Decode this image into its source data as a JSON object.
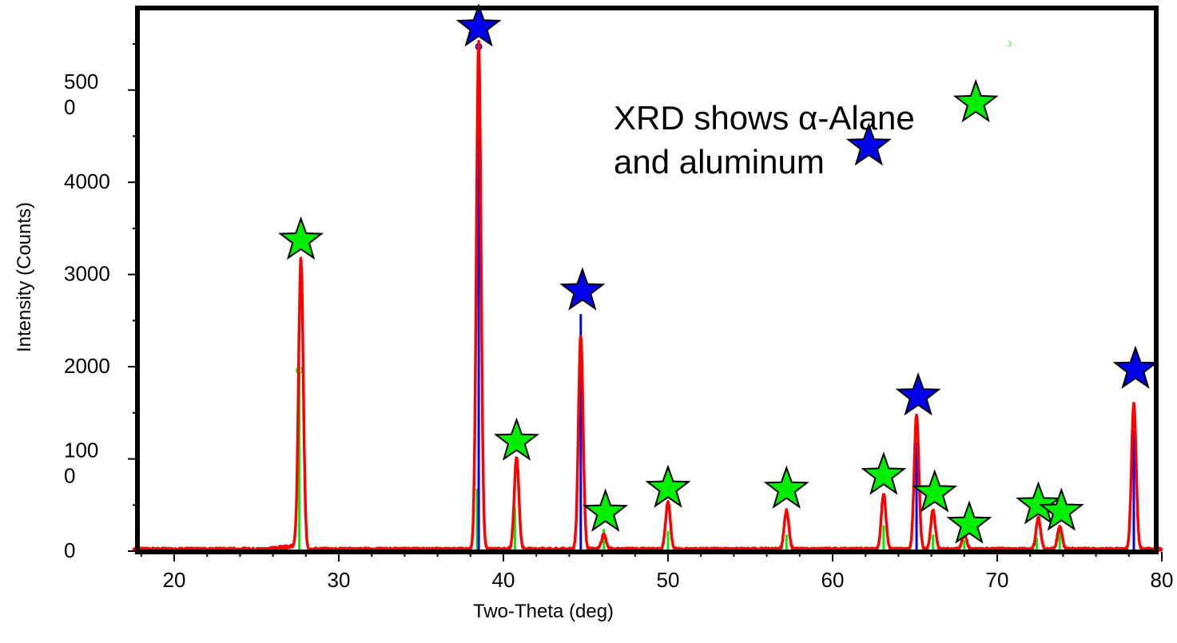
{
  "chart_data": {
    "type": "line",
    "xlabel": "Two-Theta (deg)",
    "ylabel": "Intensity (Counts)",
    "xlim": [
      17.5,
      80
    ],
    "ylim": [
      0,
      5600
    ],
    "x_ticks": [
      20,
      30,
      40,
      50,
      60,
      70,
      80
    ],
    "x_tick_labels": [
      "20",
      "30",
      "40",
      "50",
      "60",
      "70",
      "80"
    ],
    "y_ticks": [
      {
        "value": 0,
        "lines": [
          "0"
        ]
      },
      {
        "value": 1000,
        "lines": [
          "100",
          "0"
        ]
      },
      {
        "value": 2000,
        "lines": [
          "2000"
        ]
      },
      {
        "value": 3000,
        "lines": [
          "3000"
        ]
      },
      {
        "value": 4000,
        "lines": [
          "4000"
        ]
      },
      {
        "value": 5000,
        "lines": [
          "500",
          "0"
        ]
      }
    ],
    "annotation_lines": [
      "XRD shows α-Alane",
      "and aluminum"
    ],
    "stray_marks": [
      "3"
    ],
    "colors": {
      "pattern": "#ff0000",
      "alane": "#00ee00",
      "aluminum": "#0000ee",
      "star_outline": "#000000",
      "frame": "#000000"
    },
    "series": [
      {
        "type": "line",
        "color": "#ff0000",
        "peaks": [
          {
            "x": 27.7,
            "y": 3150
          },
          {
            "x": 38.5,
            "y": 5500
          },
          {
            "x": 40.8,
            "y": 1000
          },
          {
            "x": 44.7,
            "y": 2320
          },
          {
            "x": 46.1,
            "y": 160
          },
          {
            "x": 50.0,
            "y": 520
          },
          {
            "x": 57.2,
            "y": 420
          },
          {
            "x": 63.1,
            "y": 600
          },
          {
            "x": 65.1,
            "y": 1460
          },
          {
            "x": 66.1,
            "y": 420
          },
          {
            "x": 68.0,
            "y": 160
          },
          {
            "x": 72.5,
            "y": 340
          },
          {
            "x": 73.8,
            "y": 250
          },
          {
            "x": 78.3,
            "y": 1580
          }
        ]
      },
      {
        "type": "stick",
        "color": "#00ee00",
        "sticks": [
          {
            "x": 27.6,
            "y": 1960,
            "marker": true
          },
          {
            "x": 38.4,
            "y": 680
          },
          {
            "x": 40.7,
            "y": 480
          },
          {
            "x": 46.1,
            "y": 240
          },
          {
            "x": 50.0,
            "y": 220
          },
          {
            "x": 57.2,
            "y": 180
          },
          {
            "x": 63.1,
            "y": 280
          },
          {
            "x": 66.1,
            "y": 180
          },
          {
            "x": 68.0,
            "y": 120
          },
          {
            "x": 72.4,
            "y": 150
          },
          {
            "x": 73.8,
            "y": 260
          }
        ]
      },
      {
        "type": "stick",
        "color": "#0000ee",
        "sticks": [
          {
            "x": 38.5,
            "y": 5470,
            "marker": true
          },
          {
            "x": 44.7,
            "y": 2570
          },
          {
            "x": 65.1,
            "y": 1180
          },
          {
            "x": 78.3,
            "y": 1300
          }
        ]
      }
    ],
    "star_markers": [
      {
        "x": 27.7,
        "y": 3370,
        "color": "#00ee00"
      },
      {
        "x": 38.5,
        "y": 5680,
        "color": "#0000ee"
      },
      {
        "x": 40.8,
        "y": 1190,
        "color": "#00ee00"
      },
      {
        "x": 44.8,
        "y": 2820,
        "color": "#0000ee"
      },
      {
        "x": 46.2,
        "y": 420,
        "color": "#00ee00"
      },
      {
        "x": 50.0,
        "y": 680,
        "color": "#00ee00"
      },
      {
        "x": 57.2,
        "y": 670,
        "color": "#00ee00"
      },
      {
        "x": 63.1,
        "y": 820,
        "color": "#00ee00"
      },
      {
        "x": 65.2,
        "y": 1680,
        "color": "#0000ee"
      },
      {
        "x": 66.2,
        "y": 630,
        "color": "#00ee00"
      },
      {
        "x": 68.3,
        "y": 290,
        "color": "#00ee00"
      },
      {
        "x": 72.5,
        "y": 500,
        "color": "#00ee00"
      },
      {
        "x": 73.9,
        "y": 430,
        "color": "#00ee00"
      },
      {
        "x": 78.4,
        "y": 1970,
        "color": "#0000ee"
      },
      {
        "x": 68.7,
        "y": 4860,
        "color": "#00ee00"
      },
      {
        "x": 62.2,
        "y": 4390,
        "color": "#0000ee"
      }
    ]
  }
}
